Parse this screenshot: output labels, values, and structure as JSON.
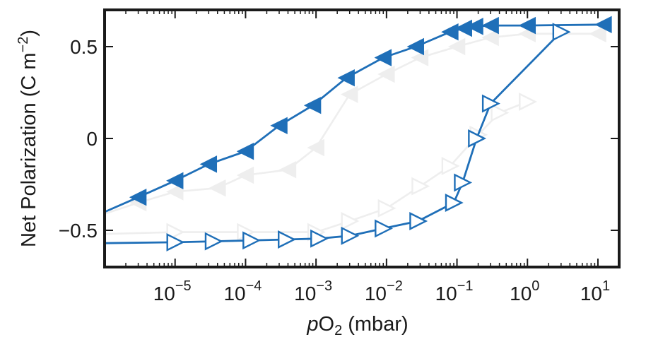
{
  "chart_data": {
    "type": "line",
    "xlabel": {
      "prefix": "p",
      "main": "O",
      "sub": "2",
      "suffix": " (mbar)"
    },
    "ylabel": {
      "main": "Net Polarization (C m",
      "sup": "−2",
      "suffix": ")"
    },
    "x_scale": "log",
    "xlim": [
      1e-06,
      20
    ],
    "ylim": [
      -0.7,
      0.7
    ],
    "x_ticks": [
      {
        "value": 1e-05,
        "base": "10",
        "exp": "−5"
      },
      {
        "value": 0.0001,
        "base": "10",
        "exp": "−4"
      },
      {
        "value": 0.001,
        "base": "10",
        "exp": "−3"
      },
      {
        "value": 0.01,
        "base": "10",
        "exp": "−2"
      },
      {
        "value": 0.1,
        "base": "10",
        "exp": "−1"
      },
      {
        "value": 1,
        "base": "10",
        "exp": "0"
      },
      {
        "value": 10,
        "base": "10",
        "exp": "1"
      }
    ],
    "y_ticks": [
      {
        "value": -0.5,
        "label": "−0.5"
      },
      {
        "value": 0,
        "label": "0"
      },
      {
        "value": 0.5,
        "label": "0.5"
      }
    ],
    "grid": false,
    "series": [
      {
        "style": "filled-left-triangle",
        "color": "#eeeeee",
        "x": [
          1e-06,
          3e-06,
          1e-05,
          4e-05,
          0.0001,
          0.0004,
          0.001,
          0.003,
          0.01,
          0.03,
          0.1,
          0.3,
          1,
          10
        ],
        "y": [
          -0.41,
          -0.35,
          -0.29,
          -0.27,
          -0.2,
          -0.17,
          -0.05,
          0.24,
          0.35,
          0.44,
          0.5,
          0.55,
          0.57,
          0.57
        ]
      },
      {
        "style": "open-right-triangle",
        "color": "#eeeeee",
        "x": [
          1e-06,
          1e-05,
          0.0001,
          0.001,
          0.003,
          0.01,
          0.03,
          0.08,
          0.2,
          0.4,
          1
        ],
        "y": [
          -0.52,
          -0.51,
          -0.51,
          -0.51,
          -0.45,
          -0.38,
          -0.26,
          -0.15,
          0.02,
          0.14,
          0.2
        ]
      },
      {
        "style": "filled-left-triangle",
        "color": "#1f6fb8",
        "x": [
          1e-06,
          3e-06,
          1e-05,
          3e-05,
          0.0001,
          0.0003,
          0.0009,
          0.0027,
          0.009,
          0.026,
          0.08,
          0.125,
          0.18,
          0.3,
          1,
          12
        ],
        "y": [
          -0.4,
          -0.32,
          -0.23,
          -0.14,
          -0.07,
          0.07,
          0.18,
          0.33,
          0.44,
          0.5,
          0.58,
          0.6,
          0.61,
          0.615,
          0.615,
          0.62
        ]
      },
      {
        "style": "open-right-triangle",
        "color": "#1f6fb8",
        "x": [
          1e-06,
          1e-05,
          3.5e-05,
          0.00012,
          0.00038,
          0.0011,
          0.003,
          0.009,
          0.028,
          0.09,
          0.12,
          0.19,
          0.3,
          3
        ],
        "y": [
          -0.57,
          -0.565,
          -0.56,
          -0.555,
          -0.55,
          -0.545,
          -0.53,
          -0.49,
          -0.45,
          -0.35,
          -0.24,
          0.0,
          0.19,
          0.58
        ]
      }
    ]
  }
}
